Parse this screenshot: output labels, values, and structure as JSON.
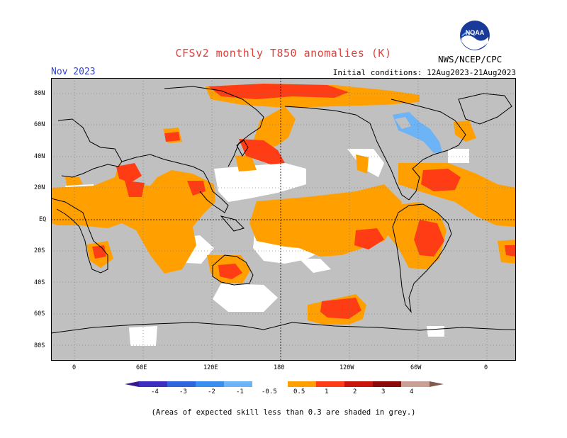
{
  "header": {
    "title": "CFSv2 monthly T850 anomalies (K)",
    "period": "Nov 2023",
    "initial_conditions": "Initial conditions: 12Aug2023-21Aug2023",
    "agency": "NWS/NCEP/CPC",
    "logo": "noaa-logo-icon"
  },
  "axes": {
    "y_ticks": [
      "80N",
      "60N",
      "40N",
      "20N",
      "EQ",
      "20S",
      "40S",
      "60S",
      "80S"
    ],
    "x_ticks": [
      "0",
      "60E",
      "120E",
      "180",
      "120W",
      "60W",
      "0"
    ]
  },
  "legend": {
    "levels": [
      "-4",
      "-3",
      "-2",
      "-1",
      "-0.5",
      "0.5",
      "1",
      "2",
      "3",
      "4"
    ],
    "colors": {
      "below_-4": "#3a1a8a",
      "-4_-3": "#3d2ec0",
      "-3_-2": "#2f66dc",
      "-2_-1": "#3a8ef0",
      "-1_-0.5": "#6cb4f6",
      "neutral": "#ffffff",
      "0.5_1": "#ffa000",
      "1_2": "#ff3c14",
      "2_3": "#c8140a",
      "3_4": "#8a0a0a",
      "above_4": "#c8a096",
      "top": "#825a50",
      "low_skill": "#c0c0c0"
    }
  },
  "footnote": "(Areas of expected skill less than 0.3 are shaded in grey.)"
}
